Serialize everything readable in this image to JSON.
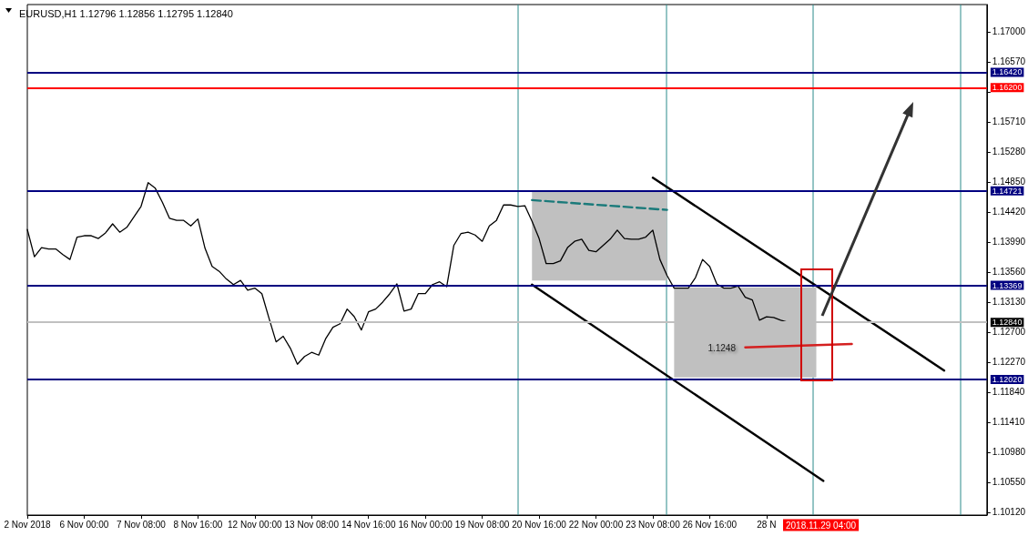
{
  "chart_data": {
    "type": "line",
    "title": "EURUSD,H1 1.12796 1.12856 1.12795 1.12840",
    "categories": [
      "2 Nov 2018",
      null,
      null,
      null,
      null,
      null,
      null,
      null,
      "6 Nov 00:00",
      null,
      null,
      null,
      null,
      null,
      null,
      null,
      "7 Nov 08:00",
      null,
      null,
      null,
      null,
      null,
      null,
      null,
      "8 Nov 16:00",
      null,
      null,
      null,
      null,
      null,
      null,
      null,
      "12 Nov 00:00",
      null,
      null,
      null,
      null,
      null,
      null,
      null,
      "13 Nov 08:00",
      null,
      null,
      null,
      null,
      null,
      null,
      null,
      "14 Nov 16:00",
      null,
      null,
      null,
      null,
      null,
      null,
      null,
      "16 Nov 00:00",
      null,
      null,
      null,
      null,
      null,
      null,
      null,
      "19 Nov 08:00",
      null,
      null,
      null,
      null,
      null,
      null,
      null,
      "20 Nov 16:00",
      null,
      null,
      null,
      null,
      null,
      null,
      null,
      "22 Nov 00:00",
      null,
      null,
      null,
      null,
      null,
      null,
      null,
      "23 Nov 08:00",
      null,
      null,
      null,
      null,
      null,
      null,
      null,
      "26 Nov 16:00",
      null,
      null,
      null,
      null,
      null,
      null,
      null,
      "28 N",
      null,
      null,
      null,
      null,
      null,
      null,
      null,
      null,
      null,
      null,
      null,
      null,
      null,
      null,
      null,
      null,
      null,
      null,
      null,
      null,
      null,
      null,
      null,
      null,
      null,
      null,
      null,
      null,
      null,
      null,
      null
    ],
    "series": [
      {
        "color": "#000000",
        "values": [
          1.1417,
          1.1378,
          1.1391,
          1.1389,
          1.1389,
          1.1381,
          1.1374,
          1.1406,
          1.1408,
          1.1408,
          1.1404,
          1.1412,
          1.1425,
          1.1413,
          1.142,
          1.1435,
          1.145,
          1.1484,
          1.1476,
          1.1456,
          1.1433,
          1.143,
          1.143,
          1.1422,
          1.1432,
          1.139,
          1.1364,
          1.1357,
          1.1346,
          1.1338,
          1.1344,
          1.133,
          1.1333,
          1.1325,
          1.129,
          1.1256,
          1.1264,
          1.1247,
          1.1224,
          1.1235,
          1.1241,
          1.1237,
          1.1261,
          1.1277,
          1.1282,
          1.1303,
          1.1292,
          1.1273,
          1.1299,
          1.1303,
          1.1313,
          1.1325,
          1.1339,
          1.13,
          1.1303,
          1.1325,
          1.1325,
          1.1338,
          1.1342,
          1.1335,
          1.1394,
          1.1411,
          1.1413,
          1.1409,
          1.14,
          1.1422,
          1.143,
          1.1452,
          1.1452,
          1.145,
          1.1451,
          1.1429,
          1.1404,
          1.1368,
          1.1368,
          1.1372,
          1.1391,
          1.14,
          1.1403,
          1.1387,
          1.1385,
          1.1394,
          1.1403,
          1.1416,
          1.1404,
          1.1403,
          1.1403,
          1.1406,
          1.1416,
          1.1374,
          1.1351,
          1.1333,
          1.1333,
          1.1333,
          1.1348,
          1.1374,
          1.1364,
          1.1339,
          1.1333,
          1.1333,
          1.1336,
          1.132,
          1.1316,
          1.1287,
          1.1292,
          1.1291,
          1.1287,
          1.1284,
          null,
          null,
          null,
          null,
          null,
          null,
          null,
          null,
          null,
          null,
          null,
          null,
          null,
          null,
          null,
          null,
          null,
          null,
          null,
          null,
          null,
          null,
          null,
          null,
          null,
          null,
          null,
          null
        ]
      },
      {
        "type": "area",
        "color": "#c0c0c0",
        "values": [
          null,
          null,
          null,
          null,
          null,
          null,
          null,
          null,
          null,
          null,
          null,
          null,
          null,
          null,
          null,
          null,
          null,
          null,
          null,
          null,
          null,
          null,
          null,
          null,
          null,
          null,
          null,
          null,
          null,
          null,
          null,
          null,
          null,
          null,
          null,
          null,
          null,
          null,
          null,
          null,
          null,
          null,
          null,
          null,
          null,
          null,
          null,
          null,
          null,
          null,
          null,
          null,
          null,
          null,
          null,
          null,
          null,
          null,
          null,
          null,
          null,
          null,
          null,
          null,
          null,
          null,
          null,
          null,
          null,
          null,
          null,
          null,
          null,
          null,
          null,
          null,
          null,
          null,
          null,
          null,
          null,
          null,
          null,
          null,
          null,
          null,
          null,
          null,
          null,
          null,
          null,
          null,
          null,
          null,
          null,
          null,
          null,
          null,
          null,
          null,
          null,
          null,
          null,
          null,
          null,
          null,
          null,
          null,
          null,
          null,
          null,
          null,
          null,
          null,
          null,
          null,
          null,
          null,
          null,
          null,
          null,
          null,
          null,
          null,
          null,
          null,
          null,
          null,
          null,
          null,
          null,
          null,
          null,
          null,
          null,
          null
        ],
        "lower": [
          null,
          null,
          null,
          null,
          null,
          null,
          null,
          null,
          null,
          null,
          null,
          null,
          null,
          null,
          null,
          null,
          null,
          null,
          null,
          null,
          null,
          null,
          null,
          null,
          null,
          null,
          null,
          null,
          null,
          null,
          null,
          null,
          null,
          null,
          null,
          null,
          null,
          null,
          null,
          null,
          null,
          null,
          null,
          null,
          null,
          null,
          null,
          null,
          null,
          null,
          null,
          null,
          null,
          null,
          null,
          null,
          null,
          null,
          null,
          null,
          null,
          null,
          null,
          null,
          null,
          null,
          null,
          null,
          null,
          null,
          null,
          1.1344,
          1.1344,
          1.1344,
          1.1344,
          1.1344,
          1.1344,
          1.1344,
          1.1344,
          1.1344,
          1.1344,
          1.1344,
          1.1344,
          1.1344,
          1.1344,
          1.1344,
          1.1344,
          1.1344,
          1.1344,
          1.1344,
          1.1344,
          null,
          null,
          null,
          null,
          null,
          null,
          null,
          null,
          null,
          null,
          null,
          null,
          null,
          null,
          null,
          null,
          null,
          null,
          null,
          null,
          null,
          null,
          null,
          null,
          null,
          null,
          null,
          null,
          null,
          null,
          null,
          null,
          null,
          null,
          null,
          null,
          null,
          null,
          null,
          null,
          null,
          null,
          null,
          null,
          null
        ],
        "upper": [
          null,
          null,
          null,
          null,
          null,
          null,
          null,
          null,
          null,
          null,
          null,
          null,
          null,
          null,
          null,
          null,
          null,
          null,
          null,
          null,
          null,
          null,
          null,
          null,
          null,
          null,
          null,
          null,
          null,
          null,
          null,
          null,
          null,
          null,
          null,
          null,
          null,
          null,
          null,
          null,
          null,
          null,
          null,
          null,
          null,
          null,
          null,
          null,
          null,
          null,
          null,
          null,
          null,
          null,
          null,
          null,
          null,
          null,
          null,
          null,
          null,
          null,
          null,
          null,
          null,
          null,
          null,
          null,
          null,
          null,
          null,
          1.1472,
          1.1472,
          1.1472,
          1.1472,
          1.1472,
          1.1472,
          1.1472,
          1.1472,
          1.1472,
          1.1472,
          1.1472,
          1.1472,
          1.1472,
          1.1472,
          1.1472,
          1.1472,
          1.1472,
          1.1472,
          1.1472,
          1.1472,
          null,
          null,
          null,
          null,
          null,
          null,
          null,
          null,
          null,
          null,
          null,
          null,
          null,
          null,
          null,
          null,
          null,
          null,
          null,
          null,
          null,
          null,
          null,
          null,
          null,
          null,
          null,
          null,
          null,
          null,
          null,
          null,
          null,
          null,
          null,
          null,
          null,
          null,
          null,
          null,
          null,
          null,
          null,
          null,
          null
        ]
      },
      {
        "type": "area",
        "color": "#c0c0c0",
        "values": [
          null,
          null,
          null,
          null,
          null,
          null,
          null,
          null,
          null,
          null,
          null,
          null,
          null,
          null,
          null,
          null,
          null,
          null,
          null,
          null,
          null,
          null,
          null,
          null,
          null,
          null,
          null,
          null,
          null,
          null,
          null,
          null,
          null,
          null,
          null,
          null,
          null,
          null,
          null,
          null,
          null,
          null,
          null,
          null,
          null,
          null,
          null,
          null,
          null,
          null,
          null,
          null,
          null,
          null,
          null,
          null,
          null,
          null,
          null,
          null,
          null,
          null,
          null,
          null,
          null,
          null,
          null,
          null,
          null,
          null,
          null,
          null,
          null,
          null,
          null,
          null,
          null,
          null,
          null,
          null,
          null,
          null,
          null,
          null,
          null,
          null,
          null,
          null,
          null,
          null,
          null,
          null,
          null,
          null,
          null,
          null,
          null,
          null,
          null,
          null,
          null,
          null,
          null,
          null,
          null,
          null,
          null,
          null,
          null,
          null,
          null,
          null,
          null,
          null,
          null,
          null,
          null,
          null,
          null,
          null,
          null,
          null,
          null,
          null,
          null,
          null,
          null,
          null,
          null,
          null,
          null,
          null,
          null,
          null,
          null,
          null
        ],
        "lower": [
          null,
          null,
          null,
          null,
          null,
          null,
          null,
          null,
          null,
          null,
          null,
          null,
          null,
          null,
          null,
          null,
          null,
          null,
          null,
          null,
          null,
          null,
          null,
          null,
          null,
          null,
          null,
          null,
          null,
          null,
          null,
          null,
          null,
          null,
          null,
          null,
          null,
          null,
          null,
          null,
          null,
          null,
          null,
          null,
          null,
          null,
          null,
          null,
          null,
          null,
          null,
          null,
          null,
          null,
          null,
          null,
          null,
          null,
          null,
          null,
          null,
          null,
          null,
          null,
          null,
          null,
          null,
          null,
          null,
          null,
          null,
          null,
          null,
          null,
          null,
          null,
          null,
          null,
          null,
          null,
          null,
          null,
          null,
          null,
          null,
          null,
          null,
          null,
          null,
          null,
          null,
          1.1205,
          1.1205,
          1.1205,
          1.1205,
          1.1205,
          1.1205,
          1.1205,
          1.1205,
          1.1205,
          1.1205,
          1.1205,
          1.1205,
          1.1205,
          1.1205,
          1.1205,
          1.1205,
          1.1205,
          1.1205,
          1.1205,
          1.1205,
          1.1205,
          null,
          null,
          null,
          null,
          null,
          null,
          null,
          null,
          null,
          null,
          null,
          null,
          null,
          null,
          null,
          null,
          null,
          null,
          null,
          null,
          null,
          null,
          null,
          null
        ],
        "upper": [
          null,
          null,
          null,
          null,
          null,
          null,
          null,
          null,
          null,
          null,
          null,
          null,
          null,
          null,
          null,
          null,
          null,
          null,
          null,
          null,
          null,
          null,
          null,
          null,
          null,
          null,
          null,
          null,
          null,
          null,
          null,
          null,
          null,
          null,
          null,
          null,
          null,
          null,
          null,
          null,
          null,
          null,
          null,
          null,
          null,
          null,
          null,
          null,
          null,
          null,
          null,
          null,
          null,
          null,
          null,
          null,
          null,
          null,
          null,
          null,
          null,
          null,
          null,
          null,
          null,
          null,
          null,
          null,
          null,
          null,
          null,
          null,
          null,
          null,
          null,
          null,
          null,
          null,
          null,
          null,
          null,
          null,
          null,
          null,
          null,
          null,
          null,
          null,
          null,
          null,
          null,
          1.1334,
          1.1334,
          1.1334,
          1.1334,
          1.1334,
          1.1334,
          1.1334,
          1.1334,
          1.1334,
          1.1334,
          1.1334,
          1.1334,
          1.1334,
          1.1334,
          1.1334,
          1.1334,
          1.1334,
          1.1334,
          1.1334,
          1.1334,
          1.1334,
          null,
          null,
          null,
          null,
          null,
          null,
          null,
          null,
          null,
          null,
          null,
          null,
          null,
          null,
          null,
          null,
          null,
          null,
          null,
          null,
          null,
          null,
          null,
          null
        ]
      },
      {
        "color": "#000000",
        "values": [
          null,
          null,
          null,
          null,
          null,
          null,
          null,
          null,
          null,
          null,
          null,
          null,
          null,
          null,
          null,
          null,
          null,
          null,
          null,
          null,
          null,
          null,
          null,
          null,
          null,
          null,
          null,
          null,
          null,
          null,
          null,
          null,
          null,
          null,
          null,
          null,
          null,
          null,
          null,
          null,
          null,
          null,
          null,
          null,
          null,
          null,
          null,
          null,
          null,
          null,
          null,
          null,
          null,
          null,
          null,
          null,
          null,
          null,
          null,
          null,
          null,
          null,
          null,
          null,
          null,
          null,
          null,
          null,
          null,
          null,
          null,
          null,
          null,
          null,
          null,
          null,
          null,
          null,
          null,
          null,
          null,
          null,
          null,
          null,
          null,
          null,
          null,
          null,
          1.1491,
          null,
          null,
          null,
          null,
          null,
          null,
          null,
          null,
          null,
          null,
          null,
          null,
          null,
          null,
          null,
          null,
          null,
          null,
          null,
          null,
          null,
          null,
          null,
          null,
          null,
          null,
          null,
          null,
          null,
          null,
          null,
          null,
          null,
          null,
          null,
          null,
          null,
          null,
          null,
          null,
          1.1215,
          null,
          null,
          null,
          null,
          null,
          null
        ]
      },
      {
        "color": "#000000",
        "values": [
          null,
          null,
          null,
          null,
          null,
          null,
          null,
          null,
          null,
          null,
          null,
          null,
          null,
          null,
          null,
          null,
          null,
          null,
          null,
          null,
          null,
          null,
          null,
          null,
          null,
          null,
          null,
          null,
          null,
          null,
          null,
          null,
          null,
          null,
          null,
          null,
          null,
          null,
          null,
          null,
          null,
          null,
          null,
          null,
          null,
          null,
          null,
          null,
          null,
          null,
          null,
          null,
          null,
          null,
          null,
          null,
          null,
          null,
          null,
          null,
          null,
          null,
          null,
          null,
          null,
          null,
          null,
          null,
          null,
          null,
          null,
          1.1338,
          null,
          null,
          null,
          null,
          null,
          null,
          null,
          null,
          null,
          null,
          null,
          null,
          null,
          null,
          null,
          null,
          null,
          null,
          null,
          null,
          null,
          null,
          null,
          null,
          null,
          null,
          null,
          null,
          null,
          null,
          null,
          null,
          null,
          null,
          null,
          null,
          null,
          null,
          null,
          null,
          1.1057,
          null,
          null,
          null,
          null,
          null,
          null,
          null,
          null,
          null,
          null,
          null,
          null,
          null,
          null,
          null,
          null,
          null,
          null,
          null,
          null,
          null,
          null,
          null
        ]
      },
      {
        "color": "#1a7a7a",
        "line_style": "dashed",
        "values": [
          null,
          null,
          null,
          null,
          null,
          null,
          null,
          null,
          null,
          null,
          null,
          null,
          null,
          null,
          null,
          null,
          null,
          null,
          null,
          null,
          null,
          null,
          null,
          null,
          null,
          null,
          null,
          null,
          null,
          null,
          null,
          null,
          null,
          null,
          null,
          null,
          null,
          null,
          null,
          null,
          null,
          null,
          null,
          null,
          null,
          null,
          null,
          null,
          null,
          null,
          null,
          null,
          null,
          null,
          null,
          null,
          null,
          null,
          null,
          null,
          null,
          null,
          null,
          null,
          null,
          null,
          null,
          null,
          null,
          null,
          null,
          1.1459,
          null,
          null,
          null,
          null,
          null,
          null,
          null,
          null,
          null,
          null,
          null,
          null,
          null,
          null,
          null,
          null,
          null,
          null,
          1.1445,
          null,
          null,
          null,
          null,
          null,
          null,
          null,
          null,
          null,
          null,
          null,
          null,
          null,
          null,
          null,
          null,
          null,
          null,
          null,
          null,
          null,
          null,
          null,
          null,
          null,
          null,
          null,
          null,
          null,
          null,
          null,
          null,
          null,
          null,
          null,
          null,
          null,
          null,
          null,
          null,
          null,
          null,
          null,
          null,
          null
        ]
      },
      {
        "color": "#d42020",
        "values": [
          null,
          null,
          null,
          null,
          null,
          null,
          null,
          null,
          null,
          null,
          null,
          null,
          null,
          null,
          null,
          null,
          null,
          null,
          null,
          null,
          null,
          null,
          null,
          null,
          null,
          null,
          null,
          null,
          null,
          null,
          null,
          null,
          null,
          null,
          null,
          null,
          null,
          null,
          null,
          null,
          null,
          null,
          null,
          null,
          null,
          null,
          null,
          null,
          null,
          null,
          null,
          null,
          null,
          null,
          null,
          null,
          null,
          null,
          null,
          null,
          null,
          null,
          null,
          null,
          null,
          null,
          null,
          null,
          null,
          null,
          null,
          null,
          null,
          null,
          null,
          null,
          null,
          null,
          null,
          null,
          null,
          null,
          null,
          null,
          null,
          null,
          null,
          null,
          null,
          null,
          null,
          null,
          null,
          null,
          null,
          null,
          null,
          null,
          null,
          null,
          null,
          1.1248,
          null,
          null,
          null,
          null,
          null,
          null,
          null,
          null,
          null,
          null,
          null,
          null,
          null,
          null,
          1.1253,
          null,
          null,
          null,
          null,
          null,
          null,
          null,
          null,
          null,
          null,
          null,
          null,
          null,
          null,
          null,
          null,
          null,
          null,
          null
        ]
      }
    ],
    "ylim": [
      1.1008,
      1.1739
    ],
    "yticks": [
      {
        "value": 1.1012,
        "label": "1.10120"
      },
      {
        "value": 1.1055,
        "label": "1.10550"
      },
      {
        "value": 1.1098,
        "label": "1.10980"
      },
      {
        "value": 1.1141,
        "label": "1.11410"
      },
      {
        "value": 1.1184,
        "label": "1.11840"
      },
      {
        "value": 1.1227,
        "label": "1.12270"
      },
      {
        "value": 1.127,
        "label": "1.12700"
      },
      {
        "value": 1.1313,
        "label": "1.13130"
      },
      {
        "value": 1.1356,
        "label": "1.13560"
      },
      {
        "value": 1.1399,
        "label": "1.13990"
      },
      {
        "value": 1.1442,
        "label": "1.14420"
      },
      {
        "value": 1.1485,
        "label": "1.14850"
      },
      {
        "value": 1.1528,
        "label": "1.15280"
      },
      {
        "value": 1.1571,
        "label": "1.15710"
      },
      {
        "value": 1.1614,
        "label": null
      },
      {
        "value": 1.1657,
        "label": "1.16570"
      },
      {
        "value": 1.17,
        "label": "1.17000"
      }
    ],
    "ref_lines": [
      {
        "axis": "y",
        "value": 1.1642,
        "label": "1.16420",
        "color": "#000080"
      },
      {
        "axis": "y",
        "value": 1.162,
        "label": "1.16200",
        "color": "#ff0000"
      },
      {
        "axis": "y",
        "value": 1.14721,
        "label": "1.14721",
        "color": "#000080"
      },
      {
        "axis": "y",
        "value": 1.13369,
        "label": "1.13369",
        "color": "#000080"
      },
      {
        "axis": "y",
        "value": 1.1284,
        "label": "1.12840",
        "color": "#c0c0c0"
      },
      {
        "axis": "y",
        "value": 1.1202,
        "label": "1.12020",
        "color": "#000080"
      }
    ],
    "annotations": [
      "1.1248",
      "2018.11.29 04:00"
    ],
    "marker": "none"
  }
}
